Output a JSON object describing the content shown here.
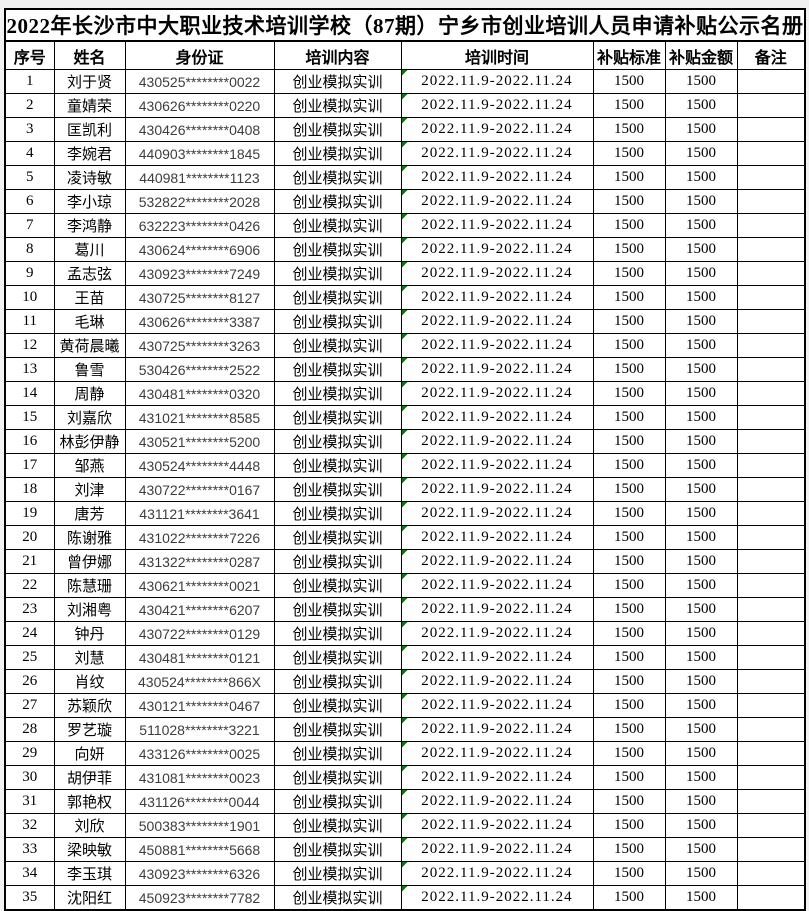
{
  "title": "2022年长沙市中大职业技术培训学校（87期）宁乡市创业培训人员申请补贴公示名册",
  "colors": {
    "flag_green": "#008000",
    "border": "#000000",
    "id_text": "#3d3d3d"
  },
  "table": {
    "headers": [
      "序号",
      "姓名",
      "身份证",
      "培训内容",
      "培训时间",
      "补贴标准",
      "补贴金额",
      "备注"
    ],
    "rows": [
      {
        "no": "1",
        "name": "刘于贤",
        "id": "430525********0022",
        "content": "创业模拟实训",
        "time": "2022.11.9-2022.11.24",
        "standard": "1500",
        "amount": "1500",
        "remark": ""
      },
      {
        "no": "2",
        "name": "童婧荣",
        "id": "430626********0220",
        "content": "创业模拟实训",
        "time": "2022.11.9-2022.11.24",
        "standard": "1500",
        "amount": "1500",
        "remark": ""
      },
      {
        "no": "3",
        "name": "匡凯利",
        "id": "430426********0408",
        "content": "创业模拟实训",
        "time": "2022.11.9-2022.11.24",
        "standard": "1500",
        "amount": "1500",
        "remark": ""
      },
      {
        "no": "4",
        "name": "李婉君",
        "id": "440903********1845",
        "content": "创业模拟实训",
        "time": "2022.11.9-2022.11.24",
        "standard": "1500",
        "amount": "1500",
        "remark": ""
      },
      {
        "no": "5",
        "name": "凌诗敏",
        "id": "440981********1123",
        "content": "创业模拟实训",
        "time": "2022.11.9-2022.11.24",
        "standard": "1500",
        "amount": "1500",
        "remark": ""
      },
      {
        "no": "6",
        "name": "李小琼",
        "id": "532822********2028",
        "content": "创业模拟实训",
        "time": "2022.11.9-2022.11.24",
        "standard": "1500",
        "amount": "1500",
        "remark": ""
      },
      {
        "no": "7",
        "name": "李鸿静",
        "id": "632223********0426",
        "content": "创业模拟实训",
        "time": "2022.11.9-2022.11.24",
        "standard": "1500",
        "amount": "1500",
        "remark": ""
      },
      {
        "no": "8",
        "name": "葛川",
        "id": "430624********6906",
        "content": "创业模拟实训",
        "time": "2022.11.9-2022.11.24",
        "standard": "1500",
        "amount": "1500",
        "remark": ""
      },
      {
        "no": "9",
        "name": "孟志弦",
        "id": "430923********7249",
        "content": "创业模拟实训",
        "time": "2022.11.9-2022.11.24",
        "standard": "1500",
        "amount": "1500",
        "remark": ""
      },
      {
        "no": "10",
        "name": "王苗",
        "id": "430725********8127",
        "content": "创业模拟实训",
        "time": "2022.11.9-2022.11.24",
        "standard": "1500",
        "amount": "1500",
        "remark": ""
      },
      {
        "no": "11",
        "name": "毛琳",
        "id": "430626********3387",
        "content": "创业模拟实训",
        "time": "2022.11.9-2022.11.24",
        "standard": "1500",
        "amount": "1500",
        "remark": ""
      },
      {
        "no": "12",
        "name": "黄荷晨曦",
        "id": "430725********3263",
        "content": "创业模拟实训",
        "time": "2022.11.9-2022.11.24",
        "standard": "1500",
        "amount": "1500",
        "remark": ""
      },
      {
        "no": "13",
        "name": "鲁雪",
        "id": "530426********2522",
        "content": "创业模拟实训",
        "time": "2022.11.9-2022.11.24",
        "standard": "1500",
        "amount": "1500",
        "remark": ""
      },
      {
        "no": "14",
        "name": "周静",
        "id": "430481********0320",
        "content": "创业模拟实训",
        "time": "2022.11.9-2022.11.24",
        "standard": "1500",
        "amount": "1500",
        "remark": ""
      },
      {
        "no": "15",
        "name": "刘嘉欣",
        "id": "431021********8585",
        "content": "创业模拟实训",
        "time": "2022.11.9-2022.11.24",
        "standard": "1500",
        "amount": "1500",
        "remark": ""
      },
      {
        "no": "16",
        "name": "林彭伊静",
        "id": "430521********5200",
        "content": "创业模拟实训",
        "time": "2022.11.9-2022.11.24",
        "standard": "1500",
        "amount": "1500",
        "remark": ""
      },
      {
        "no": "17",
        "name": "邹燕",
        "id": "430524********4448",
        "content": "创业模拟实训",
        "time": "2022.11.9-2022.11.24",
        "standard": "1500",
        "amount": "1500",
        "remark": ""
      },
      {
        "no": "18",
        "name": "刘津",
        "id": "430722********0167",
        "content": "创业模拟实训",
        "time": "2022.11.9-2022.11.24",
        "standard": "1500",
        "amount": "1500",
        "remark": ""
      },
      {
        "no": "19",
        "name": "唐芳",
        "id": "431121********3641",
        "content": "创业模拟实训",
        "time": "2022.11.9-2022.11.24",
        "standard": "1500",
        "amount": "1500",
        "remark": ""
      },
      {
        "no": "20",
        "name": "陈谢雅",
        "id": "431022********7226",
        "content": "创业模拟实训",
        "time": "2022.11.9-2022.11.24",
        "standard": "1500",
        "amount": "1500",
        "remark": ""
      },
      {
        "no": "21",
        "name": "曾伊娜",
        "id": "431322********0287",
        "content": "创业模拟实训",
        "time": "2022.11.9-2022.11.24",
        "standard": "1500",
        "amount": "1500",
        "remark": ""
      },
      {
        "no": "22",
        "name": "陈慧珊",
        "id": "430621********0021",
        "content": "创业模拟实训",
        "time": "2022.11.9-2022.11.24",
        "standard": "1500",
        "amount": "1500",
        "remark": ""
      },
      {
        "no": "23",
        "name": "刘湘粤",
        "id": "430421********6207",
        "content": "创业模拟实训",
        "time": "2022.11.9-2022.11.24",
        "standard": "1500",
        "amount": "1500",
        "remark": ""
      },
      {
        "no": "24",
        "name": "钟丹",
        "id": "430722********0129",
        "content": "创业模拟实训",
        "time": "2022.11.9-2022.11.24",
        "standard": "1500",
        "amount": "1500",
        "remark": ""
      },
      {
        "no": "25",
        "name": "刘慧",
        "id": "430481********0121",
        "content": "创业模拟实训",
        "time": "2022.11.9-2022.11.24",
        "standard": "1500",
        "amount": "1500",
        "remark": ""
      },
      {
        "no": "26",
        "name": "肖纹",
        "id": "430524********866X",
        "content": "创业模拟实训",
        "time": "2022.11.9-2022.11.24",
        "standard": "1500",
        "amount": "1500",
        "remark": ""
      },
      {
        "no": "27",
        "name": "苏颖欣",
        "id": "430121********0467",
        "content": "创业模拟实训",
        "time": "2022.11.9-2022.11.24",
        "standard": "1500",
        "amount": "1500",
        "remark": ""
      },
      {
        "no": "28",
        "name": "罗艺璇",
        "id": "511028********3221",
        "content": "创业模拟实训",
        "time": "2022.11.9-2022.11.24",
        "standard": "1500",
        "amount": "1500",
        "remark": ""
      },
      {
        "no": "29",
        "name": "向妍",
        "id": "433126********0025",
        "content": "创业模拟实训",
        "time": "2022.11.9-2022.11.24",
        "standard": "1500",
        "amount": "1500",
        "remark": ""
      },
      {
        "no": "30",
        "name": "胡伊菲",
        "id": "431081********0023",
        "content": "创业模拟实训",
        "time": "2022.11.9-2022.11.24",
        "standard": "1500",
        "amount": "1500",
        "remark": ""
      },
      {
        "no": "31",
        "name": "郭艳权",
        "id": "431126********0044",
        "content": "创业模拟实训",
        "time": "2022.11.9-2022.11.24",
        "standard": "1500",
        "amount": "1500",
        "remark": ""
      },
      {
        "no": "32",
        "name": "刘欣",
        "id": "500383********1901",
        "content": "创业模拟实训",
        "time": "2022.11.9-2022.11.24",
        "standard": "1500",
        "amount": "1500",
        "remark": ""
      },
      {
        "no": "33",
        "name": "梁映敏",
        "id": "450881********5668",
        "content": "创业模拟实训",
        "time": "2022.11.9-2022.11.24",
        "standard": "1500",
        "amount": "1500",
        "remark": ""
      },
      {
        "no": "34",
        "name": "李玉琪",
        "id": "430923********6326",
        "content": "创业模拟实训",
        "time": "2022.11.9-2022.11.24",
        "standard": "1500",
        "amount": "1500",
        "remark": ""
      },
      {
        "no": "35",
        "name": "沈阳红",
        "id": "450923********7782",
        "content": "创业模拟实训",
        "time": "2022.11.9-2022.11.24",
        "standard": "1500",
        "amount": "1500",
        "remark": ""
      }
    ]
  }
}
